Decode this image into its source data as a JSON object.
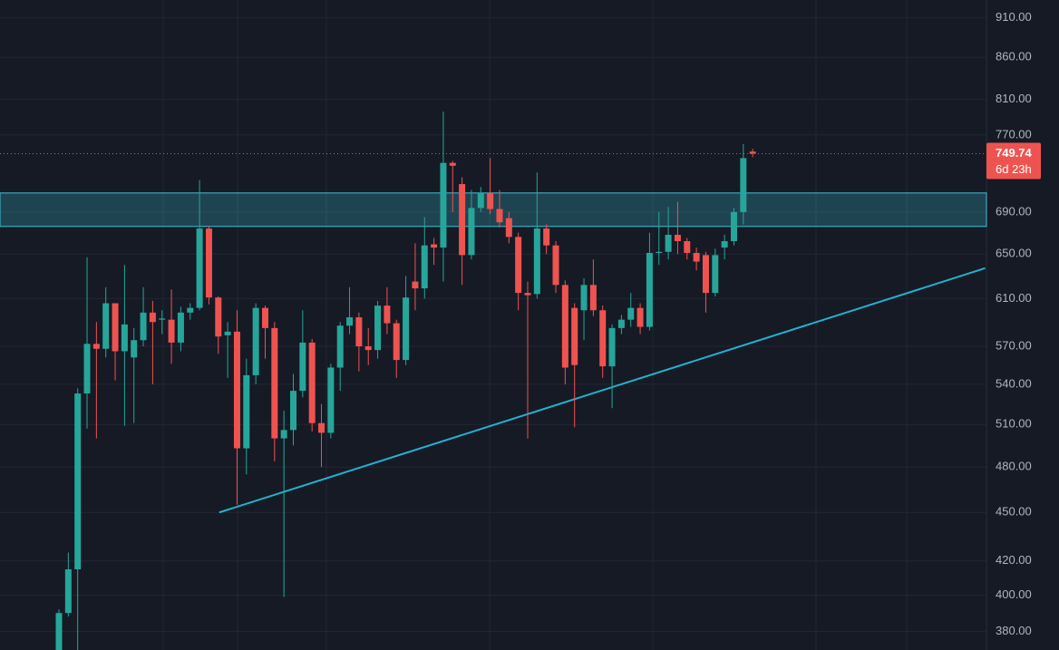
{
  "chart_data": {
    "type": "candlestick",
    "log_scale": true,
    "ylim": [
      370,
      933
    ],
    "yticks": [
      {
        "value": 380,
        "label": "380.00"
      },
      {
        "value": 400,
        "label": "400.00"
      },
      {
        "value": 420,
        "label": "420.00"
      },
      {
        "value": 450,
        "label": "450.00"
      },
      {
        "value": 480,
        "label": "480.00"
      },
      {
        "value": 510,
        "label": "510.00"
      },
      {
        "value": 540,
        "label": "540.00"
      },
      {
        "value": 570,
        "label": "570.00"
      },
      {
        "value": 610,
        "label": "610.00"
      },
      {
        "value": 650,
        "label": "650.00"
      },
      {
        "value": 690,
        "label": "690.00"
      },
      {
        "value": 770,
        "label": "770.00"
      },
      {
        "value": 810,
        "label": "810.00"
      },
      {
        "value": 860,
        "label": "860.00"
      },
      {
        "value": 910,
        "label": "910.00"
      }
    ],
    "grid": true,
    "up_color": "#26a69a",
    "down_color": "#ef5350",
    "open": [
      370,
      390,
      415,
      533,
      572,
      568,
      606,
      566,
      561,
      575,
      598,
      592,
      592,
      573,
      598,
      602,
      674,
      611,
      579,
      582,
      493,
      547,
      602,
      585,
      500,
      506,
      535,
      573,
      511,
      504,
      553,
      587,
      594,
      570,
      567,
      604,
      589,
      559,
      625,
      619,
      659,
      656,
      740,
      718,
      649,
      694,
      709,
      693,
      684,
      666,
      615,
      614,
      674,
      658,
      622,
      602,
      600,
      622,
      600,
      554,
      585,
      592,
      602,
      586,
      651,
      652,
      668,
      662,
      651,
      649,
      615,
      656,
      662,
      690,
      752
    ],
    "high": [
      392,
      425,
      537,
      647,
      590,
      620,
      606,
      640,
      585,
      620,
      608,
      600,
      618,
      603,
      606,
      722,
      676,
      612,
      590,
      600,
      560,
      606,
      604,
      590,
      520,
      548,
      600,
      576,
      525,
      556,
      590,
      620,
      598,
      585,
      608,
      620,
      592,
      630,
      660,
      685,
      665,
      796,
      742,
      725,
      712,
      715,
      745,
      712,
      690,
      670,
      625,
      730,
      678,
      662,
      626,
      606,
      628,
      645,
      604,
      588,
      596,
      615,
      606,
      670,
      690,
      695,
      700,
      665,
      656,
      652,
      655,
      668,
      694,
      760,
      755
    ],
    "low": [
      369,
      388,
      370,
      507,
      500,
      561,
      543,
      509,
      511,
      570,
      540,
      580,
      556,
      566,
      592,
      600,
      605,
      564,
      545,
      455,
      475,
      540,
      560,
      484,
      399,
      495,
      530,
      505,
      480,
      500,
      535,
      580,
      550,
      555,
      560,
      580,
      545,
      555,
      600,
      610,
      640,
      625,
      690,
      622,
      645,
      690,
      688,
      675,
      660,
      600,
      500,
      610,
      650,
      615,
      540,
      508,
      575,
      595,
      545,
      522,
      580,
      586,
      580,
      583,
      640,
      645,
      650,
      645,
      635,
      598,
      612,
      645,
      658,
      678,
      746
    ],
    "close": [
      390,
      415,
      533,
      572,
      568,
      606,
      566,
      588,
      575,
      598,
      590,
      593,
      573,
      598,
      602,
      674,
      611,
      578,
      582,
      493,
      547,
      602,
      585,
      500,
      506,
      535,
      573,
      511,
      504,
      553,
      587,
      594,
      570,
      567,
      604,
      589,
      559,
      611,
      619,
      658,
      656,
      740,
      737,
      649,
      694,
      709,
      693,
      680,
      666,
      615,
      613,
      674,
      658,
      622,
      553,
      555,
      622,
      600,
      554,
      585,
      592,
      602,
      586,
      651,
      652,
      668,
      662,
      651,
      643,
      615,
      649,
      662,
      690,
      745,
      749.74
    ],
    "zone": [
      676,
      709
    ],
    "zone_color": "#3dc3d6",
    "trendline": [
      [
        17.1,
        450
      ],
      [
        98.8,
        637
      ]
    ],
    "trendline_color": "#22b3d1",
    "last_price": 749.74,
    "countdown": "6d 23h"
  }
}
